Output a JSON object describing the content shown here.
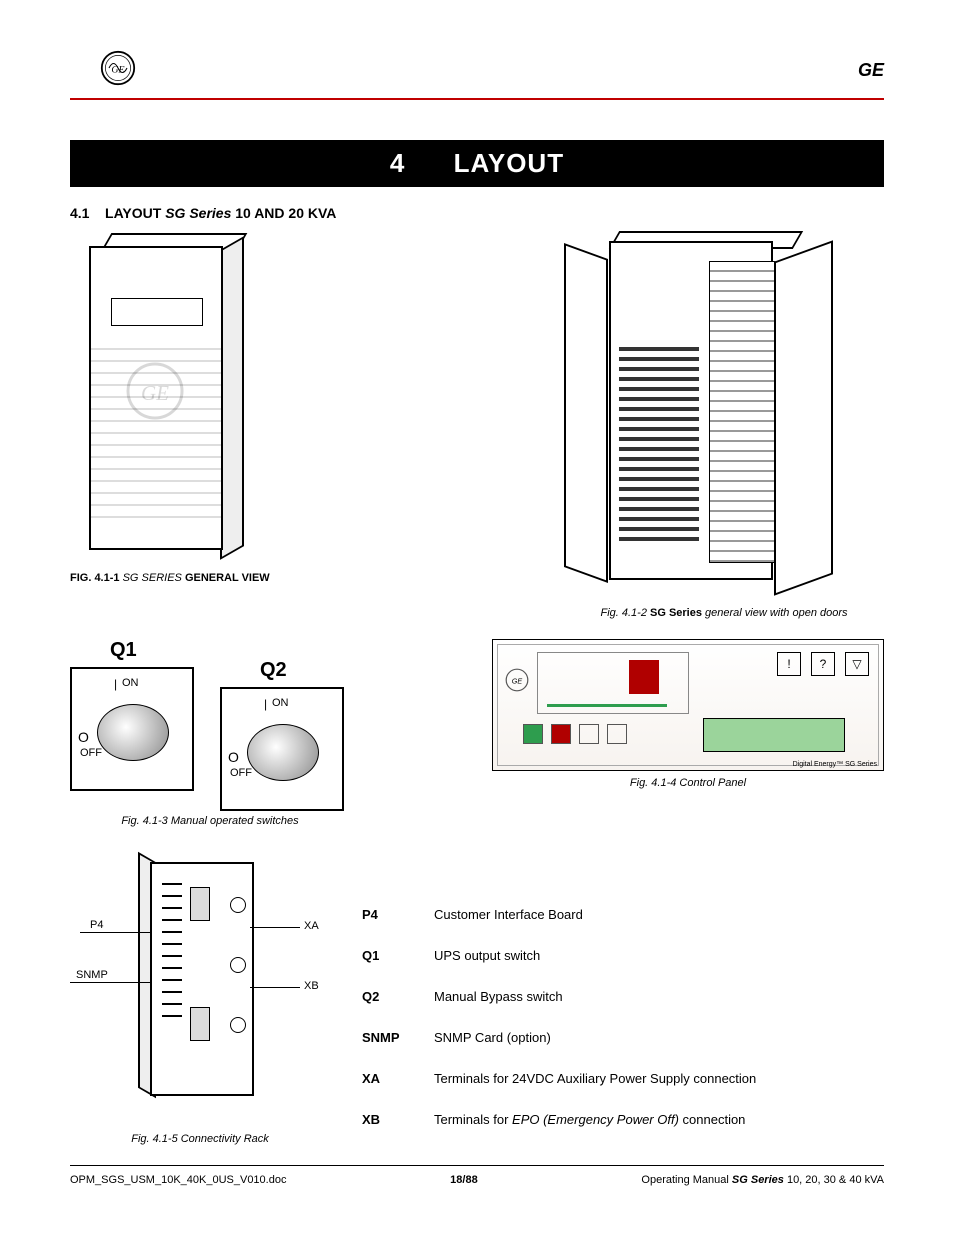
{
  "header": {
    "brand": "GE"
  },
  "banner": {
    "number": "4",
    "title": "LAYOUT"
  },
  "section": {
    "num": "4.1",
    "pre": "LAYOUT",
    "sg": "SG Series",
    "post": "10 AND 20 KVA"
  },
  "captions": {
    "f1_pre": "FIG. 4.1-1   ",
    "f1_sg": "SG SERIES ",
    "f1_post": "GENERAL VIEW",
    "f2_pre": "Fig. 4.1-2   ",
    "f2_sg": "SG Series ",
    "f2_post": "general view with open doors",
    "f3": "Fig. 4.1-3   Manual operated switches",
    "f4": "Fig. 4.1-4   Control Panel",
    "f5": "Fig. 4.1-5   Connectivity Rack"
  },
  "switches": {
    "q1": "Q1",
    "q2": "Q2",
    "on": "ON",
    "off": "OFF",
    "mark_on": "|",
    "mark_off": "O"
  },
  "panel": {
    "btn1": "!",
    "btn2": "?",
    "btn3": "▽",
    "footer_text": "Digital Energy™   SG Series"
  },
  "conn": {
    "p4": "P4",
    "snmp": "SNMP",
    "xa": "XA",
    "xb": "XB"
  },
  "legend": {
    "rows": [
      {
        "k": "P4",
        "v": "Customer Interface Board"
      },
      {
        "k": "Q1",
        "v": "UPS output switch"
      },
      {
        "k": "Q2",
        "v": "Manual Bypass switch"
      },
      {
        "k": "SNMP",
        "v": "SNMP Card (option)"
      },
      {
        "k": "XA",
        "v": "Terminals for 24VDC Auxiliary Power Supply connection"
      },
      {
        "k": "XB",
        "v_pre": "Terminals for ",
        "v_em": "EPO (Emergency Power Off)",
        "v_post": " connection"
      }
    ]
  },
  "footer": {
    "left": "OPM_SGS_USM_10K_40K_0US_V010.doc",
    "mid": "18/88",
    "right_pre": "Operating Manual ",
    "right_sg": "SG Series",
    "right_post": " 10, 20, 30 & 40 kVA"
  },
  "style": {
    "red": "#c00000",
    "font": "Arial"
  }
}
